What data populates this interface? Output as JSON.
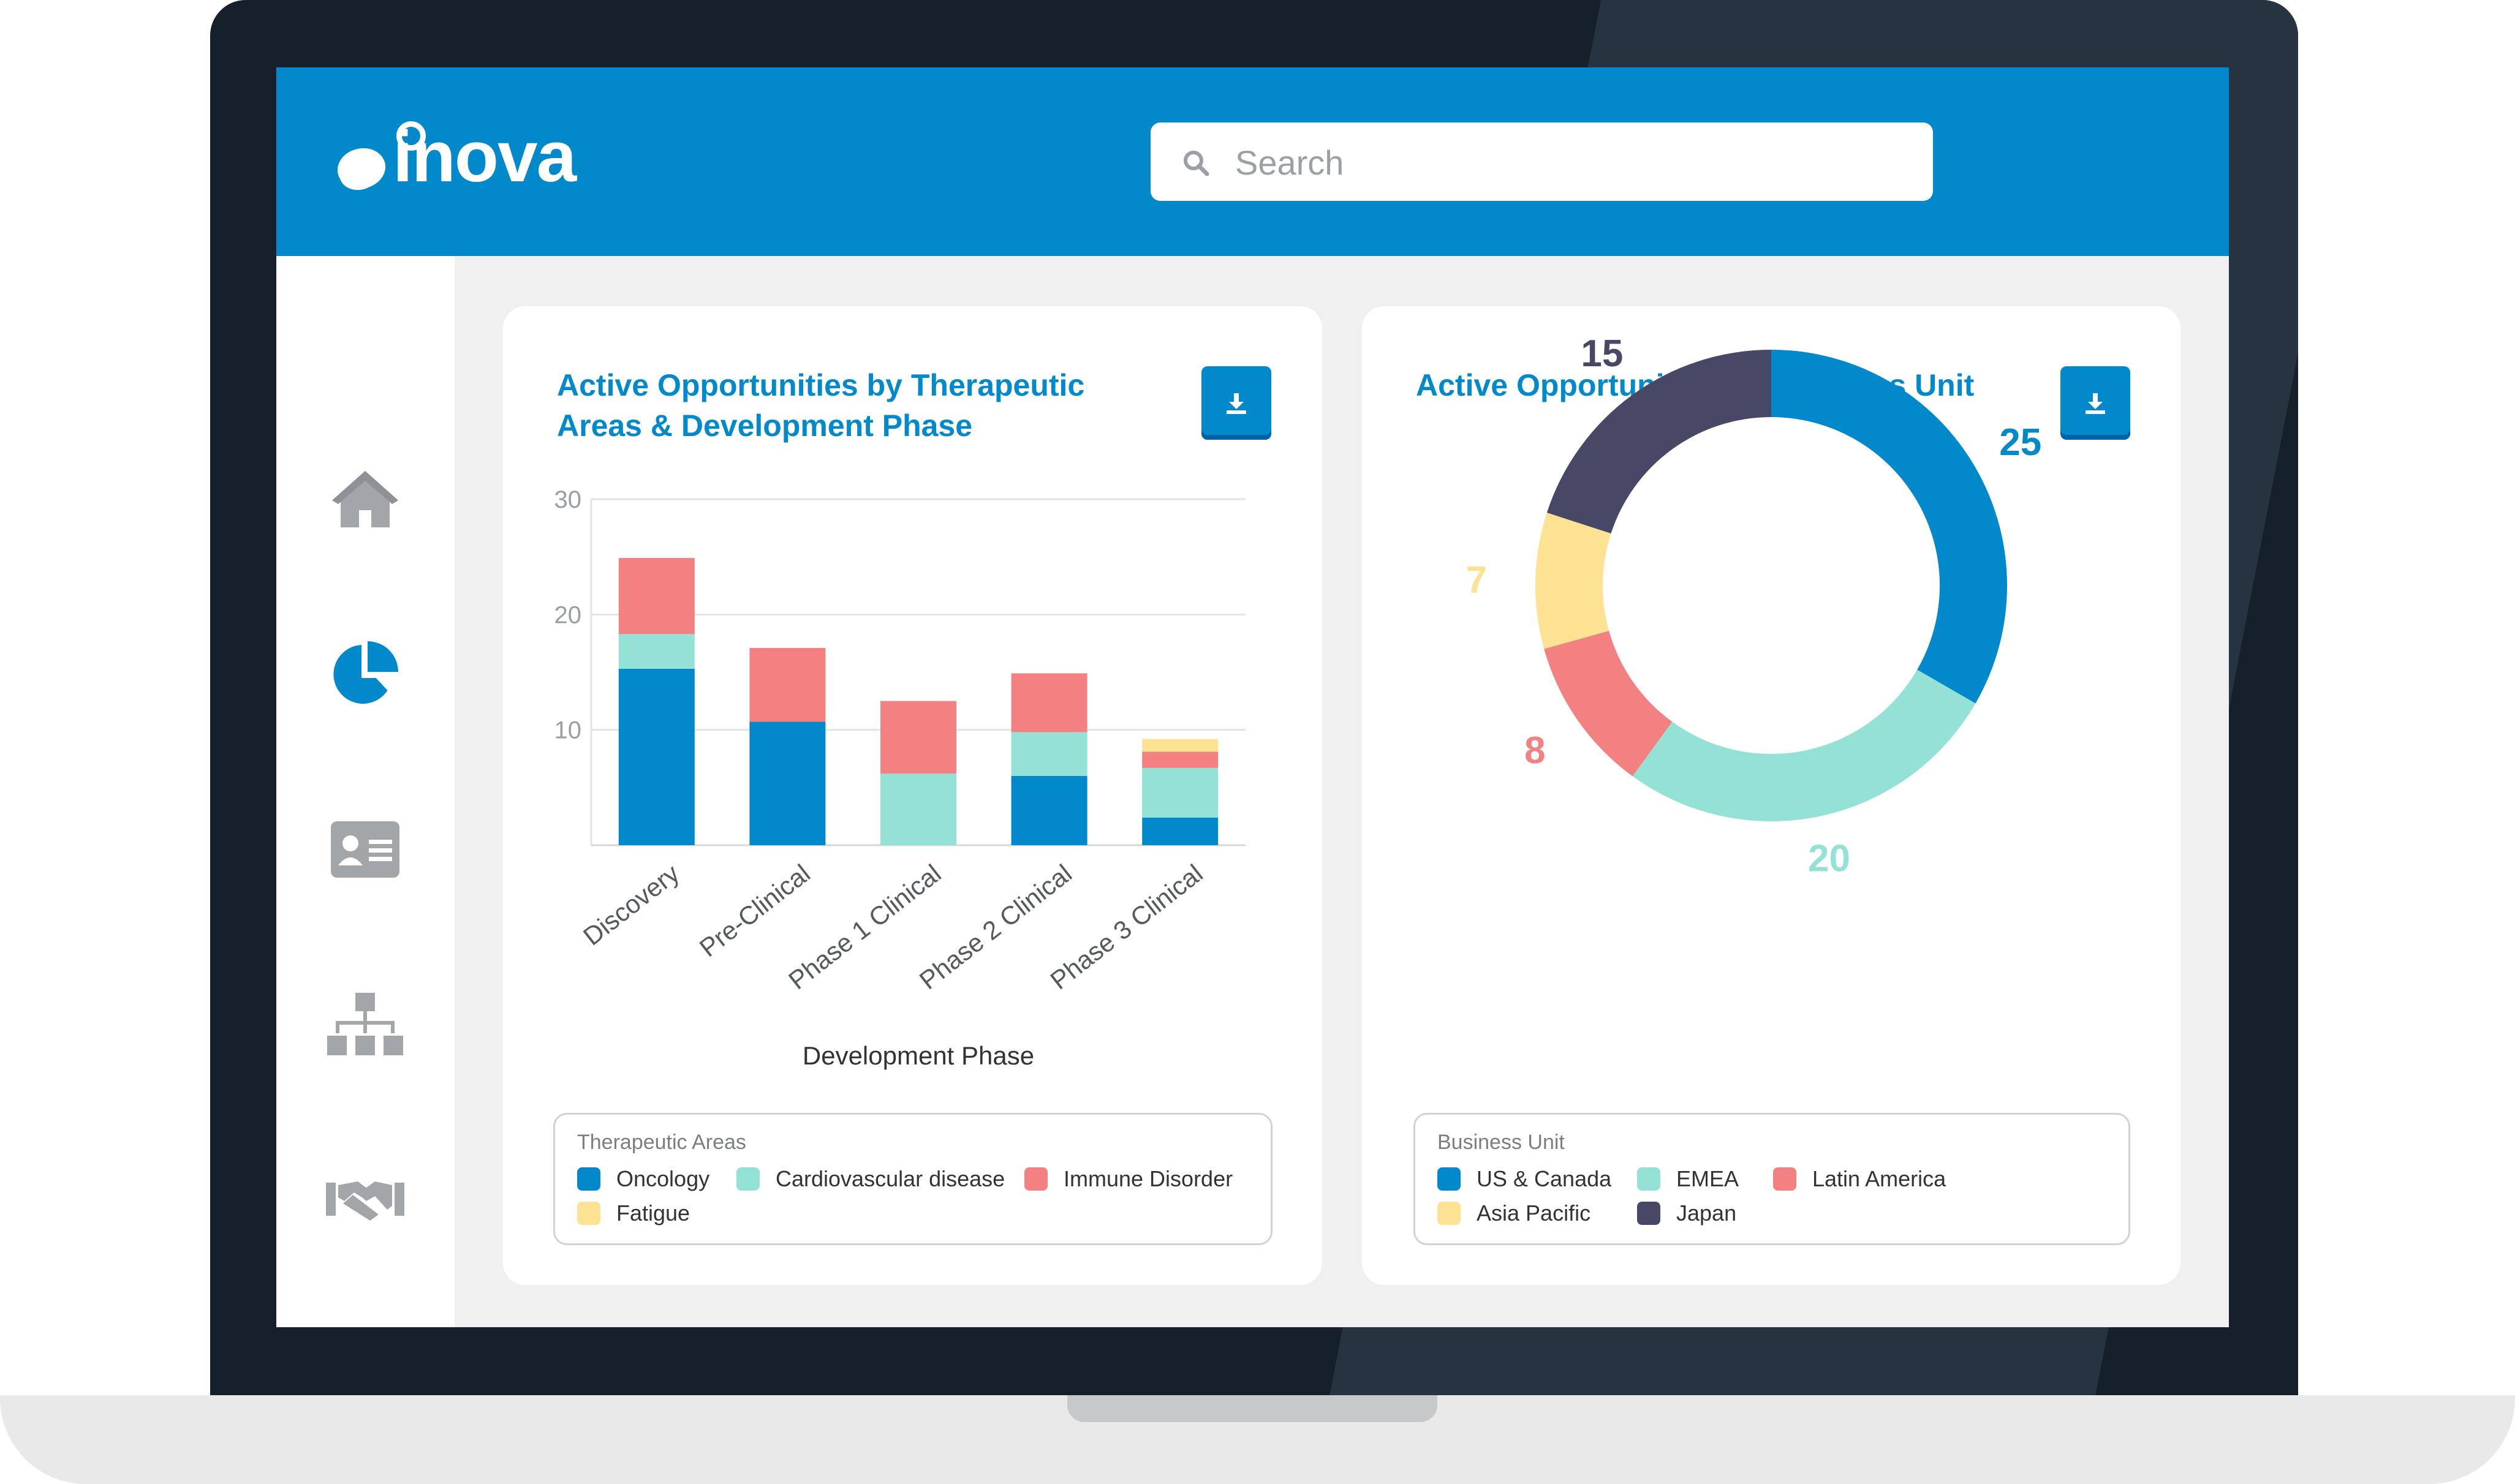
{
  "app": {
    "brand": "inova",
    "search": {
      "placeholder": "Search",
      "value": ""
    }
  },
  "sidebar": {
    "items": [
      {
        "icon": "home-icon",
        "active": false
      },
      {
        "icon": "pie-chart-icon",
        "active": true
      },
      {
        "icon": "contact-card-icon",
        "active": false
      },
      {
        "icon": "org-chart-icon",
        "active": false
      },
      {
        "icon": "handshake-icon",
        "active": false
      }
    ]
  },
  "colors": {
    "primary": "#0289cc",
    "oncology": "#0289cc",
    "cardiovascular": "#93e2d5",
    "immune": "#f38181",
    "fatigue": "#fde293",
    "us_canada": "#0289cc",
    "emea": "#93e2d5",
    "latin_america": "#f38181",
    "asia_pacific": "#fde293",
    "japan": "#464866"
  },
  "cards": {
    "left": {
      "title": "Active Opportunities by Therapeutic Areas & Development Phase",
      "download_icon": "download-icon"
    },
    "right": {
      "title": "Active Opportunities by Business Unit",
      "download_icon": "download-icon"
    }
  },
  "chart_data": [
    {
      "type": "bar",
      "stacked": true,
      "title": "Active Opportunities by Therapeutic Areas & Development Phase",
      "xlabel": "Development Phase",
      "ylabel": "",
      "ylim": [
        0,
        30
      ],
      "yticks": [
        "30",
        "20",
        "10"
      ],
      "grid": true,
      "categories": [
        "Discovery",
        "Pre-Clinical",
        "Phase 1 Clinical",
        "Phase 2 Clinical",
        "Phase 3 Clinical"
      ],
      "series": [
        {
          "name": "Oncology",
          "color": "#0289cc",
          "values": [
            15.3,
            10.7,
            0,
            6,
            2.4
          ]
        },
        {
          "name": "Cardiovascular disease",
          "color": "#93e2d5",
          "values": [
            3,
            0,
            6.2,
            3.8,
            4.3
          ]
        },
        {
          "name": "Immune Disorder",
          "color": "#f38181",
          "values": [
            6.6,
            6.4,
            6.3,
            5.1,
            1.4
          ]
        },
        {
          "name": "Fatigue",
          "color": "#fde293",
          "values": [
            0,
            0,
            0,
            0,
            1.1
          ]
        }
      ],
      "legend": {
        "title": "Therapeutic Areas",
        "position": "bottom"
      }
    },
    {
      "type": "pie",
      "donut": true,
      "title": "Active Opportunities by Business Unit",
      "slices": [
        {
          "name": "US & Canada",
          "value": 25,
          "label": "25",
          "color": "#0289cc"
        },
        {
          "name": "EMEA",
          "value": 20,
          "label": "20",
          "color": "#93e2d5"
        },
        {
          "name": "Latin America",
          "value": 8,
          "label": "8",
          "color": "#f38181"
        },
        {
          "name": "Asia Pacific",
          "value": 7,
          "label": "7",
          "color": "#fde293"
        },
        {
          "name": "Japan",
          "value": 15,
          "label": "15",
          "color": "#464866"
        }
      ],
      "legend": {
        "title": "Business Unit",
        "position": "bottom"
      }
    }
  ]
}
